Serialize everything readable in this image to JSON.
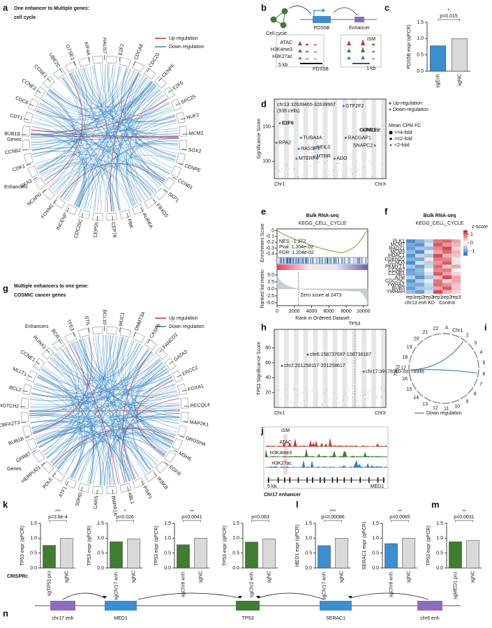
{
  "panel_labels": [
    "a",
    "b",
    "c",
    "d",
    "e",
    "f",
    "g",
    "h",
    "i",
    "j",
    "k",
    "l",
    "m",
    "n"
  ],
  "a": {
    "title": "One enhancer to Multiple genes:",
    "subtitle": "cell cycle",
    "legend": [
      "Up regulation",
      "Down regulation"
    ],
    "legend_colors": [
      "#c62f3f",
      "#2d7fc1"
    ],
    "genes_label": "Genes",
    "enhancers_label": "Enhancers",
    "genes": [
      "GTSE1",
      "KIF4A",
      "HAUS7",
      "E2F2",
      "CDCA8",
      "CDC20",
      "CENPF",
      "E2F6",
      "SPC25",
      "NUF2",
      "MCM2",
      "SOX2",
      "CENPE",
      "CCNB1",
      "SKP1",
      "FBXO5",
      "AURKA",
      "PBK",
      "CEP78",
      "CEP55",
      "CDC25C",
      "INCENP",
      "FOXM1",
      "NCAPG",
      "SKA3",
      "CDK1",
      "CCNB2",
      "BUB1B",
      "CDT1",
      "CDC6",
      "CCNE2",
      "CCNE1",
      "UBE2C"
    ]
  },
  "b": {
    "cell_cycle": "Cell cycle",
    "gene": "PDS5B",
    "enhancer": "Enhancer",
    "tracks": [
      "ATAC",
      "H3K4me3",
      "H3K27ac"
    ],
    "track_colors": [
      "#c0392b",
      "#3a7d2c",
      "#2d7fc1"
    ],
    "scale_left": "5 kb",
    "gene_track": "PDS5B",
    "scale_right": "1 kb",
    "ism": "iSM"
  },
  "g": {
    "title": "Multiple enhancers to one gene:",
    "subtitle": "COSMIC cancer genes",
    "legend": [
      "Up regulation",
      "Down regulation"
    ],
    "legend_colors": [
      "#c62f3f",
      "#2d7fc1"
    ],
    "genes_label": "Genes",
    "enhancers_label": "Enhancers",
    "genes": [
      "TFE3",
      "STIL",
      "BCL10",
      "MUC1",
      "DNMT3A",
      "CASP8",
      "FANCD2",
      "GATA3",
      "ERCC2",
      "FOXA1",
      "RECQL4",
      "MAP2K1",
      "DROSHA",
      "MSH6",
      "EGFR",
      "IKBKB",
      "PSIP1",
      "ABL1",
      "BMPR1A",
      "CARS",
      "SDHD",
      "ATF1",
      "POLE",
      "HERPUD1",
      "GPR87",
      "BUB1B",
      "CBFA2T3",
      "NOTCH2",
      "BCL2",
      "MLLT1",
      "CCNE1",
      "RUNX1",
      "BCR"
    ]
  },
  "i": {
    "chromosomes": [
      "Chr1",
      "2",
      "3",
      "4",
      "5",
      "6",
      "7",
      "8",
      "9",
      "10",
      "11",
      "12",
      "13",
      "14",
      "15",
      "16",
      "17",
      "18",
      "19",
      "20",
      "21",
      "22",
      "X"
    ],
    "gene": "TP53",
    "legend": "Down regulation",
    "color": "#2d7fc1"
  },
  "j": {
    "ism": "iSM",
    "tracks": [
      "ATAC",
      "H3K4me3",
      "H3K27ac"
    ],
    "track_colors": [
      "#c0392b",
      "#3a7d2c",
      "#2d7fc1"
    ],
    "scale": "5 kb",
    "gene": "MED1",
    "caption": "Chr17 enhancer"
  },
  "crispri": "CRISPRi:",
  "n": {
    "elements": [
      "chr17 enh",
      "MED1",
      "TP53",
      "SERAC1",
      "chr6 enh"
    ],
    "colors": [
      "#8e6bbf",
      "#3a8fd1",
      "#3f7d2f",
      "#3a8fd1",
      "#8e6bbf"
    ]
  },
  "chart_data": [
    {
      "type": "bar",
      "ylabel": "PDS5B expr (qPCR)",
      "categories": [
        "sgEnh",
        "sgNC"
      ],
      "values": [
        0.78,
        1.0
      ],
      "colors": [
        "#3a8fd1",
        "#d9d9d9"
      ],
      "ylim": [
        0,
        1.5
      ],
      "yticks": [
        {
          "value": 0,
          "label": "0.0"
        },
        0.5,
        {
          "value": 1,
          "label": "1.0"
        },
        1.5
      ],
      "pvalue": "p=0.015",
      "significance": "*"
    },
    {
      "type": "scatter",
      "ylabel": "Significance Score",
      "region": "chr13:32639465-32639967",
      "cells": "(935 cells)",
      "categories": [
        "GTF2F2",
        "E2F6",
        "TUBA4A",
        "RPA2",
        "RASSF1",
        "NEIL3",
        "MTERF4",
        "MTRR",
        "RACGAP1",
        "ADO",
        "PALB2",
        "CCNE1",
        "SNAPC2"
      ],
      "values": [
        180,
        155,
        134,
        127,
        118,
        120,
        104,
        107,
        134,
        104,
        145,
        145,
        123
      ],
      "bold": [
        false,
        true,
        false,
        false,
        false,
        false,
        false,
        false,
        false,
        false,
        false,
        true,
        false
      ],
      "color": "#2d8fd0",
      "ylim": [
        75,
        190
      ],
      "yticks": [
        100,
        150
      ],
      "x_axis_labels": [
        "Chr1",
        "ChrX"
      ],
      "legend": [
        "Up-regulation",
        "Down-regulation"
      ],
      "legend_colors": [
        "#c62f3f",
        "#2d8fd0"
      ],
      "size_legend_title": "Mean CPM FC",
      "size_legend": [
        ">=4-fold",
        ">=2-fold",
        "<2-fold"
      ]
    },
    {
      "type": "gsea",
      "title": "Bulk RNA-seq",
      "subtitle": "KEGG_CELL_CYCLE",
      "ylabel": "Enrichment Score",
      "stats": [
        "NES: -1.372",
        "Pval: 1.204e-02",
        "FDR: 1.204e-02"
      ],
      "x": [
        0,
        500,
        1000,
        2000,
        3000,
        4000,
        5000,
        6000,
        7000,
        7500,
        8000,
        9000,
        9500,
        10000,
        10400
      ],
      "values": [
        0,
        -0.04,
        -0.08,
        -0.15,
        -0.2,
        -0.26,
        -0.3,
        -0.34,
        -0.37,
        -0.38,
        -0.36,
        -0.28,
        -0.2,
        -0.1,
        0
      ],
      "color": "#7cc142",
      "xlim": [
        0,
        10500
      ],
      "xticks": [
        0,
        2000,
        4000,
        6000,
        8000,
        10000
      ],
      "ylim": [
        -0.45,
        0.03
      ],
      "yticks": [
        0,
        -0.1,
        -0.2,
        -0.3,
        -0.4
      ],
      "metric_label": "Ranked list metric",
      "metric_lim": [
        -6,
        6
      ],
      "metric_ticks": [
        {
          "value": 5,
          "label": "5.0"
        },
        2.5,
        {
          "value": 0,
          "label": "0.0"
        },
        -2.5,
        {
          "value": -5,
          "label": "-5.0"
        }
      ],
      "zero_cross": 2473,
      "zero_cross_label": "Zero score at 2473",
      "xlabel": "Rank in Ordered Dataset"
    },
    {
      "type": "heatmap",
      "title": "Bulk RNA-seq",
      "subtitle": "KEGG_CELL_CYCLE",
      "rows": [
        "PLK1",
        "MCM7",
        "RAD21",
        "MCM3",
        "HDAC1",
        "CDKN2D",
        "CCND3",
        "PKMYT1",
        "CCNB2",
        "CCNB1",
        "ATM",
        "CDC25C",
        "YWHAZ",
        "BUB3",
        "YWHAH"
      ],
      "columns": [
        "rep1",
        "rep2",
        "rep3",
        "rep1",
        "rep2",
        "rep3"
      ],
      "groups": [
        "chr13 enh KD",
        "Control"
      ],
      "values": [
        [
          -1.2,
          -0.8,
          -0.5,
          0.9,
          1.0,
          0.6
        ],
        [
          -0.9,
          -1.1,
          -0.3,
          1.1,
          0.7,
          0.5
        ],
        [
          -1.0,
          -0.6,
          -0.7,
          0.8,
          1.2,
          0.3
        ],
        [
          -0.7,
          -1.2,
          -0.2,
          0.6,
          1.0,
          0.5
        ],
        [
          -1.1,
          -0.4,
          -0.6,
          1.2,
          0.5,
          0.4
        ],
        [
          -0.8,
          -0.9,
          0.2,
          0.9,
          0.8,
          -0.2
        ],
        [
          -1.2,
          -0.3,
          -0.5,
          0.7,
          1.1,
          0.2
        ],
        [
          -0.6,
          -1.0,
          -0.4,
          1.0,
          0.4,
          0.6
        ],
        [
          -1.0,
          -0.7,
          0.1,
          0.8,
          0.9,
          -0.1
        ],
        [
          -0.9,
          -0.8,
          -0.3,
          1.1,
          0.6,
          0.3
        ],
        [
          -0.5,
          -1.1,
          -0.6,
          0.4,
          1.2,
          0.6
        ],
        [
          -1.1,
          -0.5,
          -0.2,
          0.9,
          0.3,
          0.6
        ],
        [
          -0.8,
          -0.9,
          -0.4,
          1.0,
          0.7,
          0.4
        ],
        [
          -1.0,
          -0.6,
          -0.5,
          0.6,
          1.1,
          0.4
        ],
        [
          -0.7,
          -1.0,
          -0.3,
          1.2,
          0.5,
          0.3
        ]
      ],
      "colorbar_title": "z-score",
      "colorbar_ticks": [
        1,
        0,
        -1
      ],
      "clim": [
        -1.5,
        1.5
      ]
    },
    {
      "type": "scatter",
      "title": "TP53",
      "ylabel": "TP53 Significance Score",
      "categories": [
        "chr6:158737687-158738187",
        "chr2:201258117-201258617",
        "chr17:39178360-39178946"
      ],
      "values": [
        71,
        56,
        48
      ],
      "color": "#7e57c2",
      "ylim": [
        0,
        105
      ],
      "yticks": [
        20,
        40,
        60,
        80
      ],
      "x_axis_labels": [
        "Chr1",
        "ChrX"
      ]
    },
    {
      "type": "bar",
      "ylabel": "TP53 expr (qPCR)",
      "categories": [
        "sgTP53 pro",
        "sgNC"
      ],
      "values": [
        0.76,
        1.0
      ],
      "colors": [
        "#3f7d2f",
        "#d9d9d9"
      ],
      "ylim": [
        0,
        1.5
      ],
      "yticks": [
        {
          "value": 0,
          "label": "0.0"
        },
        0.5,
        {
          "value": 1,
          "label": "1.0"
        },
        1.5
      ],
      "pvalue": "p=3.8e-4",
      "significance": "***"
    },
    {
      "type": "bar",
      "ylabel": "TP53 expr (qPCR)",
      "categories": [
        "sgChr17 enh.",
        "sgNC"
      ],
      "values": [
        0.88,
        0.98
      ],
      "colors": [
        "#3f7d2f",
        "#d9d9d9"
      ],
      "ylim": [
        0,
        1.5
      ],
      "yticks": [
        {
          "value": 0,
          "label": "0.0"
        },
        0.5,
        {
          "value": 1,
          "label": "1.0"
        },
        1.5
      ],
      "pvalue": "p=0.026",
      "significance": "*"
    },
    {
      "type": "bar",
      "ylabel": "TP53 expr (qPCR)",
      "categories": [
        "sgChr6 enh.",
        "sgNC"
      ],
      "values": [
        0.78,
        1.0
      ],
      "colors": [
        "#3f7d2f",
        "#d9d9d9"
      ],
      "ylim": [
        0,
        1.5
      ],
      "yticks": [
        {
          "value": 0,
          "label": "0.0"
        },
        0.5,
        {
          "value": 1,
          "label": "1.0"
        },
        1.5
      ],
      "pvalue": "p=0.0041",
      "significance": "**"
    },
    {
      "type": "bar",
      "ylabel": "TP53 expr (qPCR)",
      "categories": [
        "sgChr2 enh.",
        "sgNC"
      ],
      "values": [
        0.87,
        0.98
      ],
      "colors": [
        "#3f7d2f",
        "#d9d9d9"
      ],
      "ylim": [
        0,
        1.5
      ],
      "yticks": [
        {
          "value": 0,
          "label": "0.0"
        },
        0.5,
        {
          "value": 1,
          "label": "1.0"
        },
        1.5
      ],
      "pvalue": "p=0.063"
    },
    {
      "type": "bar",
      "ylabel": "MED1 expr (qPCR)",
      "categories": [
        "sgChr17 enh.",
        "sgNC"
      ],
      "values": [
        0.75,
        1.0
      ],
      "colors": [
        "#3a8fd1",
        "#d9d9d9"
      ],
      "ylim": [
        0,
        1.5
      ],
      "yticks": [
        {
          "value": 0,
          "label": "0.0"
        },
        0.5,
        {
          "value": 1,
          "label": "1.0"
        },
        1.5
      ],
      "pvalue": "p=0.00086",
      "significance": "***"
    },
    {
      "type": "bar",
      "ylabel": "SERAC1 expr (qPCR)",
      "categories": [
        "sgChr6 enh.",
        "sgNC"
      ],
      "values": [
        0.82,
        1.0
      ],
      "colors": [
        "#3a8fd1",
        "#d9d9d9"
      ],
      "ylim": [
        0,
        1.5
      ],
      "yticks": [
        {
          "value": 0,
          "label": "0.0"
        },
        0.5,
        {
          "value": 1,
          "label": "1.0"
        },
        1.5
      ],
      "pvalue": "p=0.0065",
      "significance": "**"
    },
    {
      "type": "bar",
      "ylabel": "TP53 expr (qPCR)",
      "categories": [
        "sgMED1 pro.",
        "sgNC"
      ],
      "values": [
        0.88,
        0.92
      ],
      "colors": [
        "#3f7d2f",
        "#d9d9d9"
      ],
      "ylim": [
        0,
        1.5
      ],
      "yticks": [
        {
          "value": 0,
          "label": "0.0"
        },
        0.5,
        {
          "value": 1,
          "label": "1.0"
        },
        1.5
      ],
      "pvalue": "p=0.0031",
      "significance": "**"
    }
  ]
}
